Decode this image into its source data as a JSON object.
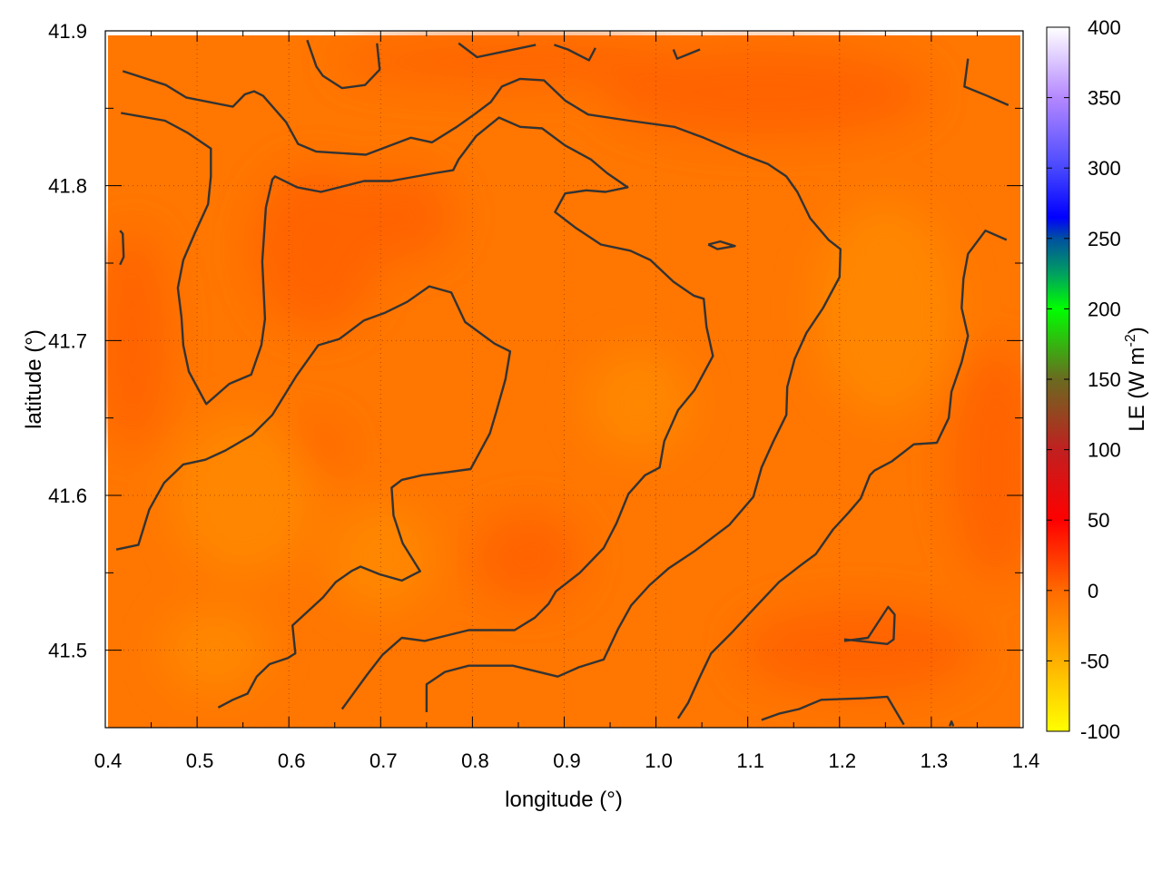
{
  "chart_data": {
    "type": "heatmap",
    "title": "",
    "xlabel": "longitude (°)",
    "ylabel": "latitude (°)",
    "xlim": [
      0.4,
      1.4
    ],
    "ylim": [
      41.45,
      41.9
    ],
    "xticks": [
      "0.4",
      "0.5",
      "0.6",
      "0.7",
      "0.8",
      "0.9",
      "1.0",
      "1.1",
      "1.2",
      "1.3",
      "1.4"
    ],
    "yticks": [
      "41.5",
      "41.6",
      "41.7",
      "41.8",
      "41.9"
    ],
    "grid": true,
    "colorbar": {
      "label": "LE (W m",
      "label_sup": "-2",
      "label_end": ")",
      "range": [
        -100,
        400
      ],
      "ticks": [
        "-100",
        "-50",
        "0",
        "50",
        "100",
        "150",
        "200",
        "250",
        "300",
        "350",
        "400"
      ],
      "palette": [
        {
          "v": -100,
          "c": "#ffff00"
        },
        {
          "v": -50,
          "c": "#ffb000"
        },
        {
          "v": 0,
          "c": "#ff6a00"
        },
        {
          "v": 50,
          "c": "#ff0000"
        },
        {
          "v": 100,
          "c": "#c02020"
        },
        {
          "v": 150,
          "c": "#6a6a20"
        },
        {
          "v": 200,
          "c": "#00ff00"
        },
        {
          "v": 225,
          "c": "#00a060"
        },
        {
          "v": 250,
          "c": "#0050a0"
        },
        {
          "v": 265,
          "c": "#0000ff"
        },
        {
          "v": 300,
          "c": "#4848ff"
        },
        {
          "v": 350,
          "c": "#b488ff"
        },
        {
          "v": 400,
          "c": "#ffffff"
        }
      ]
    },
    "field_description_colors": {
      "typical": "#ff7600",
      "low": "#ff8600",
      "high": "#ff6400"
    },
    "contour_color": "#333333",
    "contours": [
      [
        [
          0.419,
          41.874
        ],
        [
          0.466,
          41.865
        ],
        [
          0.488,
          41.857
        ],
        [
          0.539,
          41.851
        ],
        [
          0.552,
          41.859
        ],
        [
          0.562,
          41.861
        ],
        [
          0.572,
          41.858
        ],
        [
          0.597,
          41.841
        ],
        [
          0.61,
          41.827
        ],
        [
          0.63,
          41.822
        ],
        [
          0.684,
          41.82
        ],
        [
          0.733,
          41.831
        ],
        [
          0.756,
          41.828
        ],
        [
          0.783,
          41.838
        ],
        [
          0.802,
          41.846
        ],
        [
          0.82,
          41.854
        ],
        [
          0.832,
          41.864
        ],
        [
          0.852,
          41.869
        ],
        [
          0.878,
          41.868
        ],
        [
          0.901,
          41.855
        ],
        [
          0.926,
          41.846
        ],
        [
          0.971,
          41.842
        ],
        [
          1.02,
          41.838
        ],
        [
          1.052,
          41.831
        ],
        [
          1.095,
          41.82
        ],
        [
          1.122,
          41.814
        ],
        [
          1.142,
          41.806
        ],
        [
          1.154,
          41.796
        ],
        [
          1.168,
          41.779
        ],
        [
          1.188,
          41.765
        ],
        [
          1.201,
          41.759
        ],
        [
          1.2,
          41.741
        ],
        [
          1.182,
          41.721
        ],
        [
          1.164,
          41.705
        ],
        [
          1.151,
          41.688
        ],
        [
          1.143,
          41.67
        ],
        [
          1.142,
          41.652
        ],
        [
          1.128,
          41.635
        ],
        [
          1.115,
          41.618
        ],
        [
          1.106,
          41.599
        ],
        [
          1.08,
          41.581
        ],
        [
          1.042,
          41.564
        ],
        [
          1.014,
          41.553
        ],
        [
          0.993,
          41.542
        ],
        [
          0.973,
          41.529
        ],
        [
          0.959,
          41.514
        ],
        [
          0.943,
          41.494
        ],
        [
          0.916,
          41.489
        ],
        [
          0.893,
          41.483
        ],
        [
          0.844,
          41.49
        ],
        [
          0.796,
          41.49
        ],
        [
          0.77,
          41.486
        ],
        [
          0.75,
          41.478
        ],
        [
          0.75,
          41.46
        ]
      ],
      [
        [
          0.417,
          41.847
        ],
        [
          0.465,
          41.842
        ],
        [
          0.49,
          41.834
        ],
        [
          0.515,
          41.824
        ],
        [
          0.515,
          41.806
        ],
        [
          0.512,
          41.788
        ],
        [
          0.498,
          41.77
        ],
        [
          0.485,
          41.752
        ],
        [
          0.479,
          41.734
        ],
        [
          0.483,
          41.715
        ],
        [
          0.485,
          41.697
        ],
        [
          0.491,
          41.68
        ],
        [
          0.51,
          41.659
        ],
        [
          0.535,
          41.672
        ],
        [
          0.559,
          41.678
        ],
        [
          0.57,
          41.697
        ],
        [
          0.574,
          41.714
        ],
        [
          0.571,
          41.751
        ],
        [
          0.575,
          41.786
        ],
        [
          0.582,
          41.804
        ],
        [
          0.585,
          41.806
        ],
        [
          0.609,
          41.799
        ],
        [
          0.635,
          41.796
        ],
        [
          0.682,
          41.803
        ],
        [
          0.711,
          41.803
        ],
        [
          0.758,
          41.808
        ],
        [
          0.779,
          41.81
        ],
        [
          0.785,
          41.817
        ],
        [
          0.804,
          41.832
        ],
        [
          0.829,
          41.844
        ],
        [
          0.852,
          41.838
        ],
        [
          0.876,
          41.837
        ],
        [
          0.901,
          41.826
        ],
        [
          0.929,
          41.817
        ],
        [
          0.947,
          41.808
        ],
        [
          0.969,
          41.799
        ],
        [
          0.945,
          41.796
        ],
        [
          0.924,
          41.797
        ],
        [
          0.901,
          41.795
        ],
        [
          0.89,
          41.783
        ],
        [
          0.912,
          41.773
        ],
        [
          0.94,
          41.762
        ],
        [
          0.972,
          41.758
        ],
        [
          0.994,
          41.752
        ],
        [
          1.019,
          41.738
        ],
        [
          1.041,
          41.729
        ],
        [
          1.052,
          41.727
        ],
        [
          1.055,
          41.709
        ],
        [
          1.062,
          41.69
        ],
        [
          1.042,
          41.668
        ],
        [
          1.024,
          41.655
        ],
        [
          1.009,
          41.635
        ],
        [
          1.004,
          41.618
        ],
        [
          0.988,
          41.613
        ],
        [
          0.97,
          41.601
        ],
        [
          0.957,
          41.582
        ],
        [
          0.943,
          41.566
        ],
        [
          0.917,
          41.55
        ],
        [
          0.891,
          41.538
        ],
        [
          0.883,
          41.53
        ],
        [
          0.868,
          41.521
        ],
        [
          0.846,
          41.513
        ],
        [
          0.796,
          41.513
        ],
        [
          0.748,
          41.506
        ],
        [
          0.723,
          41.508
        ],
        [
          0.702,
          41.497
        ],
        [
          0.685,
          41.484
        ],
        [
          0.658,
          41.462
        ]
      ],
      [
        [
          0.412,
          41.565
        ],
        [
          0.436,
          41.568
        ],
        [
          0.448,
          41.591
        ],
        [
          0.464,
          41.608
        ],
        [
          0.485,
          41.62
        ],
        [
          0.509,
          41.623
        ],
        [
          0.531,
          41.629
        ],
        [
          0.56,
          41.639
        ],
        [
          0.582,
          41.652
        ],
        [
          0.608,
          41.677
        ],
        [
          0.632,
          41.697
        ],
        [
          0.655,
          41.701
        ],
        [
          0.682,
          41.713
        ],
        [
          0.705,
          41.718
        ],
        [
          0.729,
          41.725
        ],
        [
          0.753,
          41.735
        ],
        [
          0.777,
          41.731
        ],
        [
          0.792,
          41.712
        ],
        [
          0.824,
          41.698
        ],
        [
          0.841,
          41.693
        ],
        [
          0.836,
          41.675
        ],
        [
          0.826,
          41.654
        ],
        [
          0.819,
          41.64
        ],
        [
          0.798,
          41.617
        ],
        [
          0.773,
          41.615
        ],
        [
          0.745,
          41.613
        ],
        [
          0.723,
          41.61
        ],
        [
          0.712,
          41.605
        ],
        [
          0.714,
          41.587
        ],
        [
          0.724,
          41.569
        ],
        [
          0.743,
          41.551
        ],
        [
          0.723,
          41.545
        ],
        [
          0.699,
          41.549
        ],
        [
          0.678,
          41.554
        ],
        [
          0.668,
          41.551
        ],
        [
          0.651,
          41.544
        ],
        [
          0.637,
          41.534
        ],
        [
          0.604,
          41.516
        ],
        [
          0.607,
          41.498
        ],
        [
          0.599,
          41.495
        ],
        [
          0.579,
          41.491
        ],
        [
          0.565,
          41.483
        ],
        [
          0.555,
          41.472
        ],
        [
          0.539,
          41.468
        ],
        [
          0.523,
          41.463
        ]
      ],
      [
        [
          1.024,
          41.456
        ],
        [
          1.035,
          41.466
        ],
        [
          1.048,
          41.483
        ],
        [
          1.06,
          41.498
        ],
        [
          1.082,
          41.511
        ],
        [
          1.107,
          41.527
        ],
        [
          1.134,
          41.544
        ],
        [
          1.158,
          41.555
        ],
        [
          1.174,
          41.562
        ],
        [
          1.193,
          41.578
        ],
        [
          1.21,
          41.589
        ],
        [
          1.223,
          41.598
        ],
        [
          1.233,
          41.613
        ],
        [
          1.238,
          41.616
        ],
        [
          1.257,
          41.622
        ],
        [
          1.281,
          41.633
        ],
        [
          1.306,
          41.634
        ],
        [
          1.319,
          41.65
        ],
        [
          1.322,
          41.667
        ],
        [
          1.333,
          41.686
        ],
        [
          1.34,
          41.703
        ],
        [
          1.333,
          41.721
        ],
        [
          1.335,
          41.74
        ],
        [
          1.34,
          41.756
        ],
        [
          1.359,
          41.771
        ],
        [
          1.382,
          41.765
        ]
      ],
      [
        [
          1.115,
          41.455
        ],
        [
          1.134,
          41.459
        ],
        [
          1.156,
          41.462
        ],
        [
          1.18,
          41.468
        ],
        [
          1.227,
          41.469
        ],
        [
          1.252,
          41.47
        ],
        [
          1.27,
          41.452
        ]
      ],
      [
        [
          1.205,
          41.507
        ],
        [
          1.252,
          41.504
        ],
        [
          1.259,
          41.507
        ],
        [
          1.26,
          41.523
        ],
        [
          1.253,
          41.528
        ],
        [
          1.231,
          41.508
        ],
        [
          1.205,
          41.506
        ]
      ],
      [
        [
          0.62,
          41.894
        ],
        [
          0.63,
          41.877
        ],
        [
          0.637,
          41.871
        ],
        [
          0.658,
          41.863
        ],
        [
          0.683,
          41.865
        ],
        [
          0.699,
          41.875
        ],
        [
          0.696,
          41.892
        ]
      ],
      [
        [
          0.785,
          41.892
        ],
        [
          0.805,
          41.883
        ],
        [
          0.829,
          41.886
        ],
        [
          0.869,
          41.891
        ]
      ],
      [
        [
          0.889,
          41.891
        ],
        [
          0.904,
          41.888
        ],
        [
          0.927,
          41.881
        ],
        [
          0.934,
          41.889
        ]
      ],
      [
        [
          1.019,
          41.888
        ],
        [
          1.023,
          41.882
        ],
        [
          1.048,
          41.888
        ]
      ],
      [
        [
          1.34,
          41.882
        ],
        [
          1.336,
          41.864
        ],
        [
          1.361,
          41.858
        ],
        [
          1.384,
          41.852
        ]
      ],
      [
        [
          0.416,
          41.771
        ],
        [
          0.419,
          41.769
        ],
        [
          0.42,
          41.754
        ],
        [
          0.416,
          41.749
        ]
      ],
      [
        [
          1.057,
          41.762
        ],
        [
          1.07,
          41.764
        ],
        [
          1.086,
          41.761
        ],
        [
          1.067,
          41.759
        ],
        [
          1.057,
          41.762
        ]
      ],
      [
        [
          1.32,
          41.451
        ],
        [
          1.322,
          41.454
        ],
        [
          1.324,
          41.451
        ]
      ]
    ]
  }
}
